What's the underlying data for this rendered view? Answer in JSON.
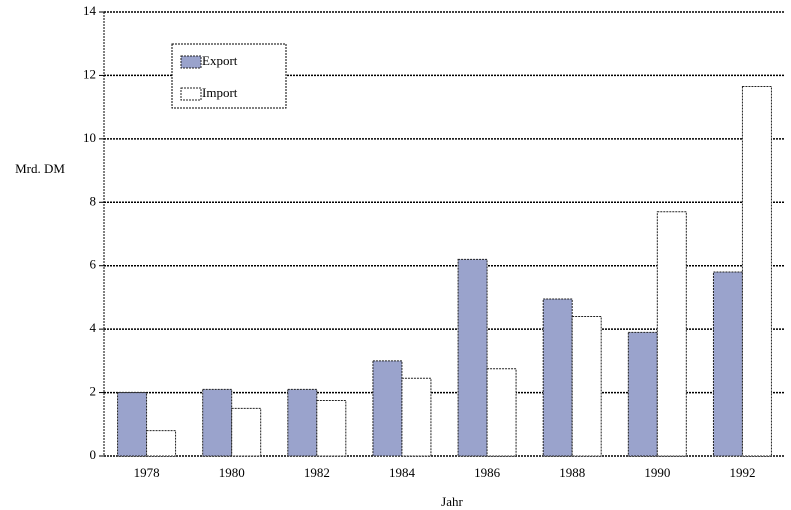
{
  "chart_data": {
    "type": "bar",
    "y_label": "Mrd. DM",
    "x_label": "Jahr",
    "categories": [
      "1978",
      "1980",
      "1982",
      "1984",
      "1986",
      "1988",
      "1990",
      "1992"
    ],
    "series": [
      {
        "name": "Export",
        "color": "#9aa3cc",
        "values": [
          2.0,
          2.1,
          2.1,
          3.0,
          6.2,
          4.95,
          3.9,
          5.8
        ]
      },
      {
        "name": "Import",
        "color": "#ffffff",
        "values": [
          0.8,
          1.5,
          1.75,
          2.45,
          2.75,
          4.4,
          7.7,
          11.65
        ]
      }
    ],
    "ylim": [
      0,
      14
    ],
    "yticks": [
      0,
      2,
      4,
      6,
      8,
      10,
      12,
      14
    ],
    "grid": true
  }
}
